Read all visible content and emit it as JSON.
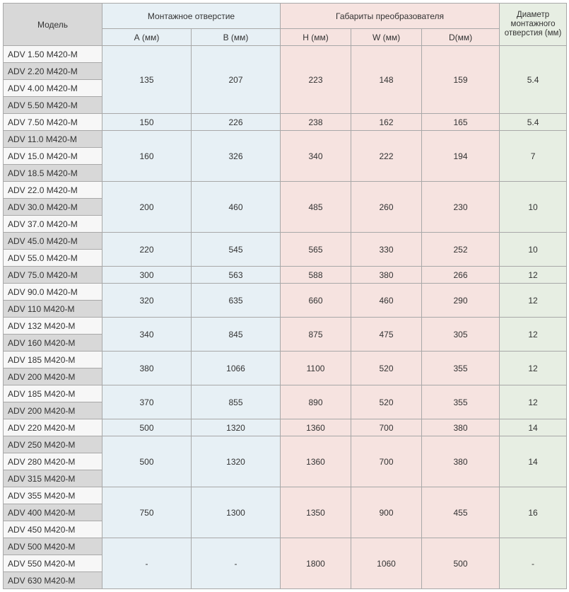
{
  "headers": {
    "model": "Модель",
    "mount_group": "Монтажное отверстие",
    "dims_group": "Габариты преобразователя",
    "diameter": "Диаметр монтажного отверстия (мм)",
    "A": "А (мм)",
    "B": "В (мм)",
    "H": "H (мм)",
    "W": "W (мм)",
    "D": "D(мм)"
  },
  "colors": {
    "gray": "#d8d8d8",
    "white": "#f7f7f7",
    "blue": "#e7f0f5",
    "pink": "#f6e3e0",
    "green": "#e7eee3",
    "border": "#a8a8a8",
    "text": "#333333"
  },
  "rows": [
    {
      "shade": "white",
      "model": "ADV 1.50 M420-M",
      "A": "135",
      "B": "207",
      "H": "223",
      "W": "148",
      "D": "159",
      "dia": "5.4",
      "span": 4
    },
    {
      "shade": "gray",
      "model": "ADV 2.20 M420-M"
    },
    {
      "shade": "white",
      "model": "ADV 4.00 M420-M"
    },
    {
      "shade": "gray",
      "model": "ADV 5.50 M420-M"
    },
    {
      "shade": "white",
      "model": "ADV 7.50 M420-M",
      "A": "150",
      "B": "226",
      "H": "238",
      "W": "162",
      "D": "165",
      "dia": "5.4",
      "span": 1
    },
    {
      "shade": "gray",
      "model": "ADV 11.0 M420-M",
      "A": "160",
      "B": "326",
      "H": "340",
      "W": "222",
      "D": "194",
      "dia": "7",
      "span": 3
    },
    {
      "shade": "white",
      "model": "ADV 15.0 M420-M"
    },
    {
      "shade": "gray",
      "model": "ADV 18.5 M420-M"
    },
    {
      "shade": "white",
      "model": "ADV 22.0 M420-M",
      "A": "200",
      "B": "460",
      "H": "485",
      "W": "260",
      "D": "230",
      "dia": "10",
      "span": 3
    },
    {
      "shade": "gray",
      "model": "ADV 30.0 M420-M"
    },
    {
      "shade": "white",
      "model": "ADV 37.0 M420-M"
    },
    {
      "shade": "gray",
      "model": "ADV 45.0 M420-M",
      "A": "220",
      "B": "545",
      "H": "565",
      "W": "330",
      "D": "252",
      "dia": "10",
      "span": 2
    },
    {
      "shade": "white",
      "model": "ADV 55.0 M420-M"
    },
    {
      "shade": "gray",
      "model": "ADV 75.0 M420-M",
      "A": "300",
      "B": "563",
      "H": "588",
      "W": "380",
      "D": "266",
      "dia": "12",
      "span": 1
    },
    {
      "shade": "white",
      "model": "ADV 90.0 M420-M",
      "A": "320",
      "B": "635",
      "H": "660",
      "W": "460",
      "D": "290",
      "dia": "12",
      "span": 2
    },
    {
      "shade": "gray",
      "model": "ADV 110 M420-M"
    },
    {
      "shade": "white",
      "model": "ADV 132 M420-M",
      "A": "340",
      "B": "845",
      "H": "875",
      "W": "475",
      "D": "305",
      "dia": "12",
      "span": 2
    },
    {
      "shade": "gray",
      "model": "ADV 160 M420-M"
    },
    {
      "shade": "white",
      "model": "ADV 185 M420-M",
      "A": "380",
      "B": "1066",
      "H": "1100",
      "W": "520",
      "D": "355",
      "dia": "12",
      "span": 2
    },
    {
      "shade": "gray",
      "model": "ADV 200 M420-M"
    },
    {
      "shade": "white",
      "model": "ADV 185 M420-M",
      "A": "370",
      "B": "855",
      "H": "890",
      "W": "520",
      "D": "355",
      "dia": "12",
      "span": 2
    },
    {
      "shade": "gray",
      "model": "ADV 200 M420-M"
    },
    {
      "shade": "white",
      "model": "ADV 220 M420-M",
      "A": "500",
      "B": "1320",
      "H": "1360",
      "W": "700",
      "D": "380",
      "dia": "14",
      "span": 1
    },
    {
      "shade": "gray",
      "model": "ADV 250 M420-M",
      "A": "500",
      "B": "1320",
      "H": "1360",
      "W": "700",
      "D": "380",
      "dia": "14",
      "span": 3
    },
    {
      "shade": "white",
      "model": "ADV 280 M420-M"
    },
    {
      "shade": "gray",
      "model": "ADV 315 M420-M"
    },
    {
      "shade": "white",
      "model": "ADV 355 M420-M",
      "A": "750",
      "B": "1300",
      "H": "1350",
      "W": "900",
      "D": "455",
      "dia": "16",
      "span": 3
    },
    {
      "shade": "gray",
      "model": "ADV 400 M420-M"
    },
    {
      "shade": "white",
      "model": "ADV 450 M420-M"
    },
    {
      "shade": "gray",
      "model": "ADV 500 M420-M",
      "A": "-",
      "B": "-",
      "H": "1800",
      "W": "1060",
      "D": "500",
      "dia": "-",
      "span": 3
    },
    {
      "shade": "white",
      "model": "ADV 550 M420-M"
    },
    {
      "shade": "gray",
      "model": "ADV 630 M420-M"
    }
  ]
}
